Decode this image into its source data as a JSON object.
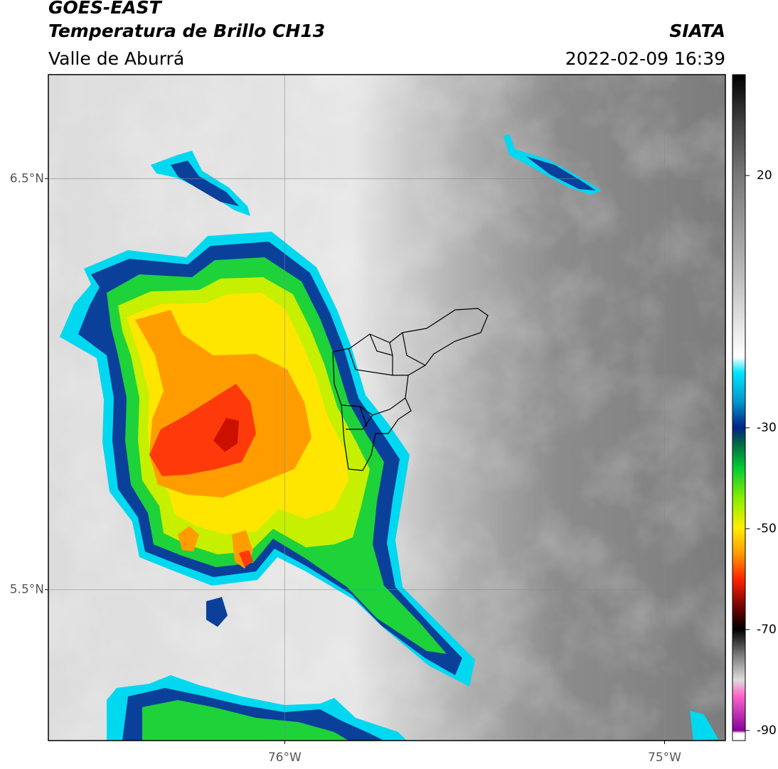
{
  "header": {
    "title": "GOES-EAST",
    "subtitle": "Temperatura de Brillo CH13",
    "region": "Valle de Aburrá",
    "source": "SIATA",
    "datetime": "2022-02-09 16:39"
  },
  "map": {
    "xlim": [
      -76.622,
      -74.84
    ],
    "ylim": [
      5.133,
      6.753
    ],
    "xticks": [
      {
        "value": -76,
        "label": "76°W"
      },
      {
        "value": -75,
        "label": "75°W"
      }
    ],
    "yticks": [
      {
        "value": 5.5,
        "label": "5.5°N"
      },
      {
        "value": 6.5,
        "label": "6.5°N"
      }
    ],
    "grid": true
  },
  "colorbar": {
    "lim": [
      -92,
      40
    ],
    "ticks": [
      -90,
      -70,
      -50,
      -30,
      20
    ]
  }
}
